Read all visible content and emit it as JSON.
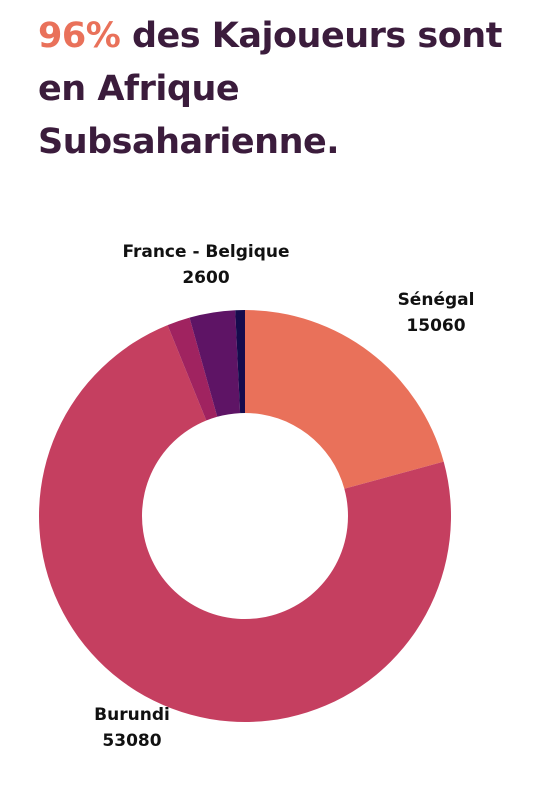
{
  "headline": {
    "highlight": "96%",
    "rest": " des Kajoueurs sont en Afrique Subsaharienne.",
    "highlight_color": "#e9715a",
    "text_color": "#3b1c3c"
  },
  "chart_data": {
    "type": "pie",
    "style": "donut",
    "title": "",
    "slices": [
      {
        "label": "Sénégal",
        "value": 15060,
        "color": "#e9715a",
        "show_label": true
      },
      {
        "label": "Burundi",
        "value": 53080,
        "color": "#c53f60",
        "show_label": true
      },
      {
        "label": "",
        "value": 1300,
        "color": "#a02360",
        "show_label": false
      },
      {
        "label": "France - Belgique",
        "value": 2600,
        "color": "#5e1465",
        "show_label": true
      },
      {
        "label": "",
        "value": 550,
        "color": "#160b4d",
        "show_label": false
      }
    ]
  }
}
